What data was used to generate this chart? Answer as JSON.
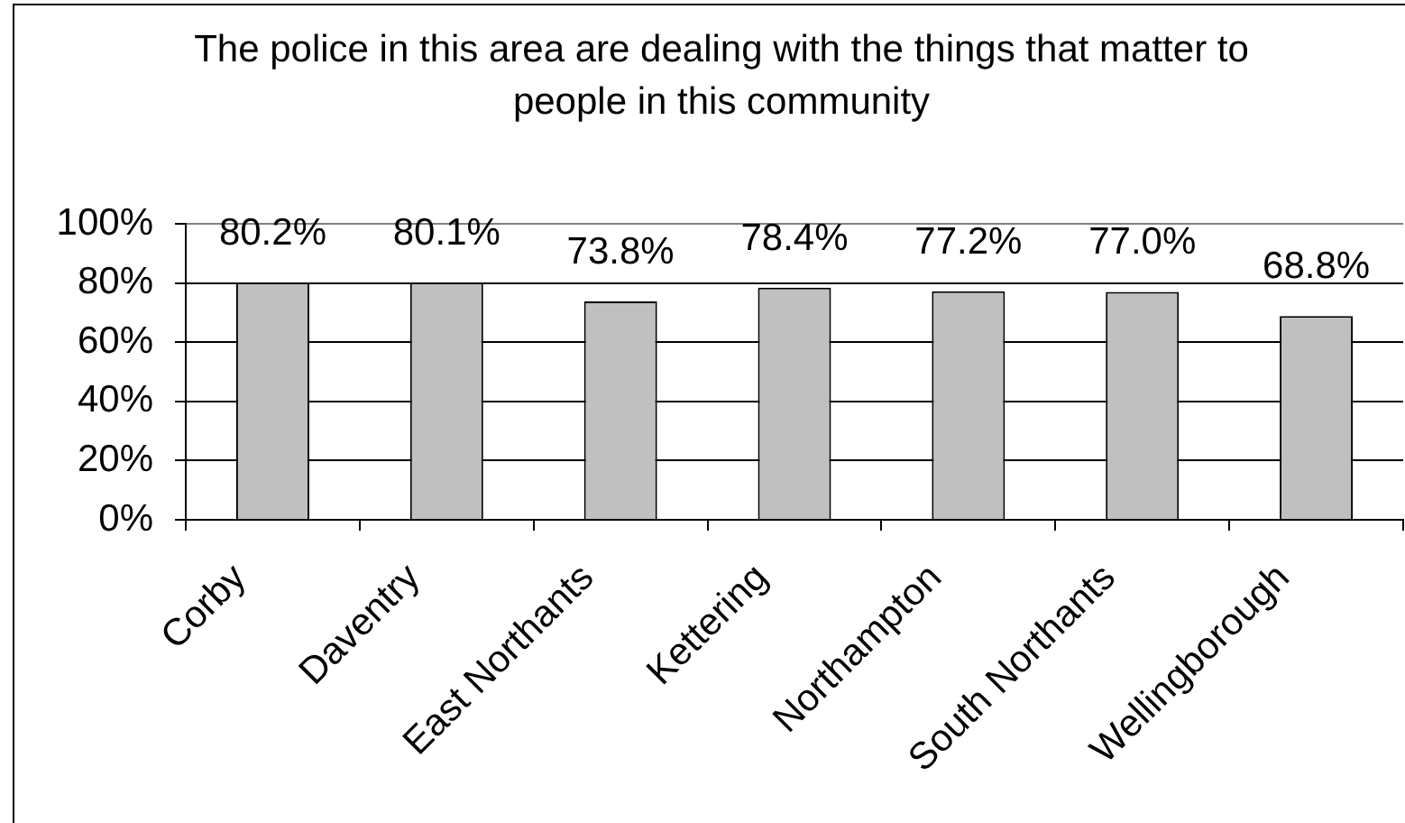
{
  "chart_data": {
    "type": "bar",
    "title": "The police in this area are dealing with the things that matter to people in this community",
    "categories": [
      "Corby",
      "Daventry",
      "East Northants",
      "Kettering",
      "Northampton",
      "South Northants",
      "Wellingborough"
    ],
    "values": [
      80.2,
      80.1,
      73.8,
      78.4,
      77.2,
      77.0,
      68.8
    ],
    "color": "#c0c0c0",
    "value_labels": [
      "80.2%",
      "80.1%",
      "73.8%",
      "78.4%",
      "77.2%",
      "77.0%",
      "68.8%"
    ],
    "ylim": [
      0,
      100
    ],
    "yticks": [
      {
        "value": 0,
        "label": "0%"
      },
      {
        "value": 20,
        "label": "20%"
      },
      {
        "value": 40,
        "label": "40%"
      },
      {
        "value": 60,
        "label": "60%"
      },
      {
        "value": 80,
        "label": "80%"
      },
      {
        "value": 100,
        "label": "100%"
      }
    ],
    "grid": "y"
  }
}
